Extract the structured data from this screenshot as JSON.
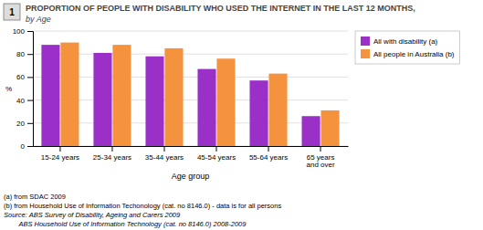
{
  "chart_data": {
    "type": "bar",
    "title": "PROPORTION OF PEOPLE WITH DISABILITY WHO USED THE INTERNET IN THE LAST 12 MONTHS,",
    "subtitle": "by Age",
    "x_label": "Age group",
    "y_label": "%",
    "categories": [
      "15-24 years",
      "25-34 years",
      "35-44 years",
      "45-54 years",
      "55-64 years",
      "65 years\nand over"
    ],
    "series": [
      {
        "name": "All with disability (a)",
        "color": "#9B30C8",
        "values": [
          88,
          81,
          78,
          67,
          57,
          26
        ]
      },
      {
        "name": "All people in Australia (b)",
        "color": "#F5923E",
        "values": [
          90,
          88,
          85,
          76,
          63,
          31
        ]
      }
    ],
    "ylim": [
      0,
      100
    ],
    "yticks": [
      0,
      20,
      40,
      60,
      80,
      100
    ],
    "grid": true,
    "legend": "upper right",
    "annotations": [
      "1",
      "(a) from SDAC 2009",
      "(b) from Household Use of Information Techonology (cat. no 8146.0) - data is for all persons",
      "Source: ABS Survey of Disability, Ageing and Carers 2009",
      "        ABS Household Use of Information Technology (cat. no 8146.0) 2008-2009"
    ]
  }
}
